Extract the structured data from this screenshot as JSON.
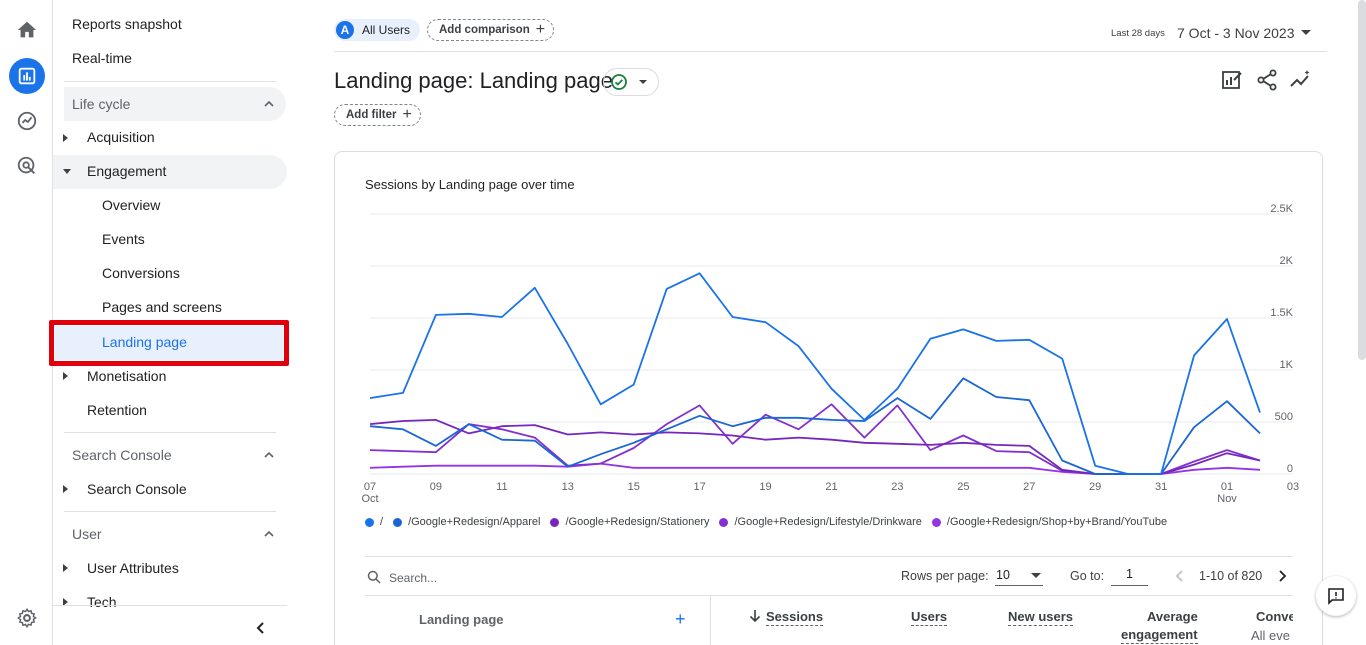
{
  "nav": {
    "reports_snapshot": "Reports snapshot",
    "real_time": "Real-time",
    "life_cycle": "Life cycle",
    "acquisition": "Acquisition",
    "engagement": "Engagement",
    "overview": "Overview",
    "events": "Events",
    "conversions": "Conversions",
    "pages_and_screens": "Pages and screens",
    "landing_page": "Landing page",
    "monetisation": "Monetisation",
    "retention": "Retention",
    "search_console_section": "Search Console",
    "search_console": "Search Console",
    "user_section": "User",
    "user_attributes": "User Attributes",
    "tech": "Tech"
  },
  "header": {
    "audience_chip": "All Users",
    "audience_avatar": "A",
    "add_comparison": "Add comparison",
    "date_prefix": "Last 28 days",
    "date_range": "7 Oct - 3 Nov 2023",
    "title": "Landing page: Landing page",
    "add_filter": "Add filter"
  },
  "chart_data": {
    "type": "line",
    "title": "Sessions by Landing page over time",
    "x": [
      "07 Oct",
      "08",
      "09",
      "10",
      "11",
      "12",
      "13",
      "14",
      "15",
      "16",
      "17",
      "18",
      "19",
      "20",
      "21",
      "22",
      "23",
      "24",
      "25",
      "26",
      "27",
      "28",
      "29",
      "30",
      "31",
      "01 Nov",
      "02",
      "03"
    ],
    "x_tick_labels": [
      {
        "label": "07",
        "sub": "Oct"
      },
      {
        "label": "09"
      },
      {
        "label": "11"
      },
      {
        "label": "13"
      },
      {
        "label": "15"
      },
      {
        "label": "17"
      },
      {
        "label": "19"
      },
      {
        "label": "21"
      },
      {
        "label": "23"
      },
      {
        "label": "25"
      },
      {
        "label": "27"
      },
      {
        "label": "29"
      },
      {
        "label": "31"
      },
      {
        "label": "01",
        "sub": "Nov"
      },
      {
        "label": "03"
      }
    ],
    "y_ticks": [
      "0",
      "500",
      "1K",
      "1.5K",
      "2K",
      "2.5K"
    ],
    "ylim": [
      0,
      2500
    ],
    "series": [
      {
        "name": "/",
        "color": "#1a73e8",
        "values": [
          730,
          780,
          1530,
          1540,
          1510,
          1790,
          1250,
          670,
          860,
          1780,
          1930,
          1510,
          1460,
          1230,
          820,
          520,
          820,
          1300,
          1390,
          1280,
          1290,
          1110,
          80,
          0,
          0,
          1140,
          1490,
          590
        ]
      },
      {
        "name": "/Google+Redesign/Apparel",
        "color": "#1967d2",
        "values": [
          460,
          430,
          270,
          480,
          330,
          320,
          70,
          190,
          300,
          430,
          560,
          460,
          540,
          540,
          520,
          510,
          730,
          530,
          920,
          740,
          710,
          130,
          0,
          0,
          0,
          450,
          700,
          390
        ]
      },
      {
        "name": "/Google+Redesign/Stationery",
        "color": "#7627bb",
        "values": [
          480,
          510,
          520,
          390,
          460,
          470,
          380,
          400,
          380,
          400,
          390,
          370,
          330,
          350,
          330,
          300,
          290,
          280,
          300,
          280,
          270,
          40,
          0,
          0,
          0,
          90,
          200,
          130
        ]
      },
      {
        "name": "/Google+Redesign/Lifestyle/Drinkware",
        "color": "#8430ce",
        "values": [
          230,
          220,
          210,
          480,
          430,
          350,
          80,
          100,
          250,
          480,
          660,
          290,
          570,
          430,
          670,
          350,
          660,
          230,
          370,
          220,
          210,
          30,
          0,
          0,
          0,
          120,
          230,
          130
        ]
      },
      {
        "name": "/Google+Redesign/Shop+by+Brand/YouTube",
        "color": "#9334e6",
        "values": [
          60,
          70,
          80,
          80,
          80,
          80,
          70,
          100,
          60,
          60,
          60,
          60,
          60,
          60,
          60,
          60,
          60,
          60,
          60,
          60,
          60,
          20,
          0,
          0,
          0,
          40,
          60,
          40
        ]
      }
    ],
    "grid": true,
    "legend": "bottom"
  },
  "table": {
    "search_placeholder": "Search...",
    "rows_per_page_label": "Rows per page:",
    "rows_per_page_value": "10",
    "go_to_label": "Go to:",
    "go_to_value": "1",
    "page_info": "1-10 of 820",
    "col_landing_page": "Landing page",
    "col_sessions": "Sessions",
    "col_users": "Users",
    "col_new_users": "New users",
    "col_avg_engagement_1": "Average",
    "col_avg_engagement_2": "engagement",
    "col_conversions_1": "Conve",
    "col_conversions_2": "All eve"
  }
}
